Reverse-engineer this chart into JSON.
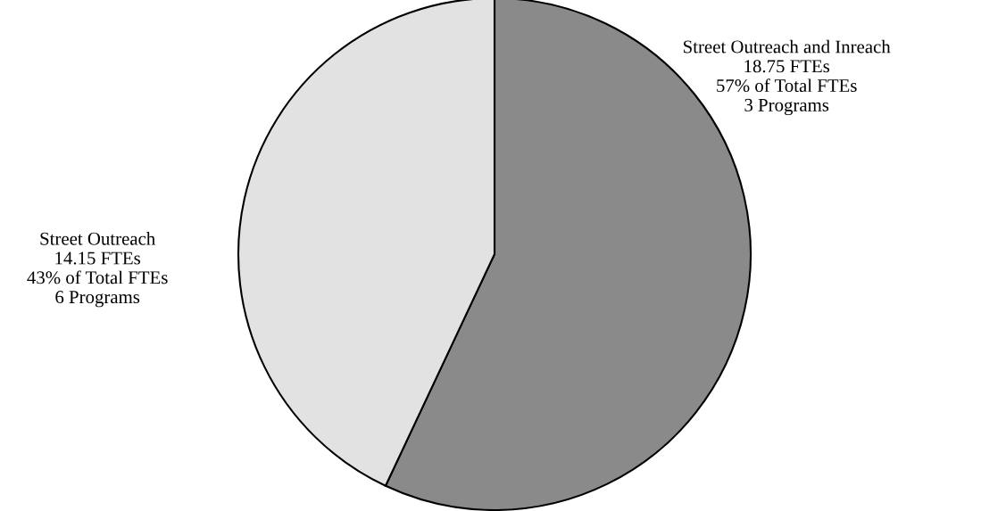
{
  "chart_data": {
    "type": "pie",
    "categories": [
      "Street Outreach and Inreach",
      "Street Outreach"
    ],
    "values": [
      18.75,
      14.15
    ],
    "colors": [
      "#8a8a8a",
      "#e2e2e2"
    ],
    "value_labels": [
      "18.75 FTEs\n57% of Total FTEs\n3 Programs",
      "14.15 FTEs\n43% of Total FTEs\n6 Programs"
    ],
    "legend": false
  }
}
